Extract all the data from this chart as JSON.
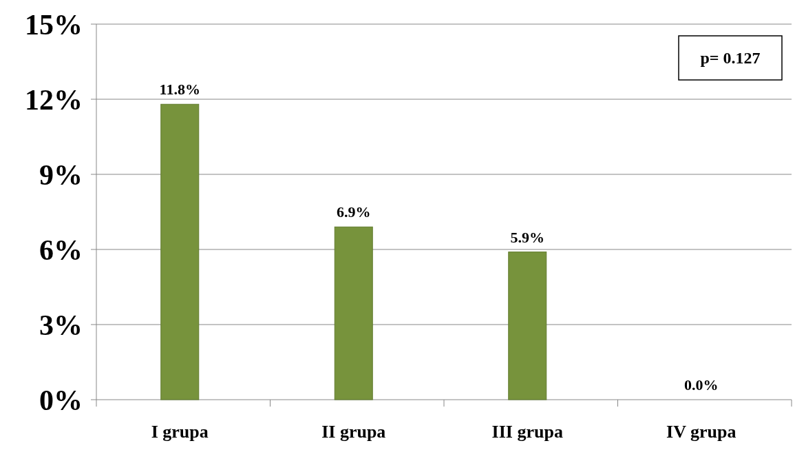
{
  "chart_data": {
    "type": "bar",
    "categories": [
      "I grupa",
      "II grupa",
      "III grupa",
      "IV grupa"
    ],
    "values": [
      11.8,
      6.9,
      5.9,
      0.0
    ],
    "color": "#77933c",
    "value_labels": [
      "11.8%",
      "6.9%",
      "5.9%",
      "0.0%"
    ],
    "ylim": [
      0,
      15
    ],
    "yticks": [
      {
        "value": 0,
        "label": "0%"
      },
      {
        "value": 3,
        "label": "3%"
      },
      {
        "value": 6,
        "label": "6%"
      },
      {
        "value": 9,
        "label": "9%"
      },
      {
        "value": 12,
        "label": "12%"
      },
      {
        "value": 15,
        "label": "15%"
      }
    ],
    "grid": "y",
    "annotations": [
      "p= 0.127"
    ]
  }
}
